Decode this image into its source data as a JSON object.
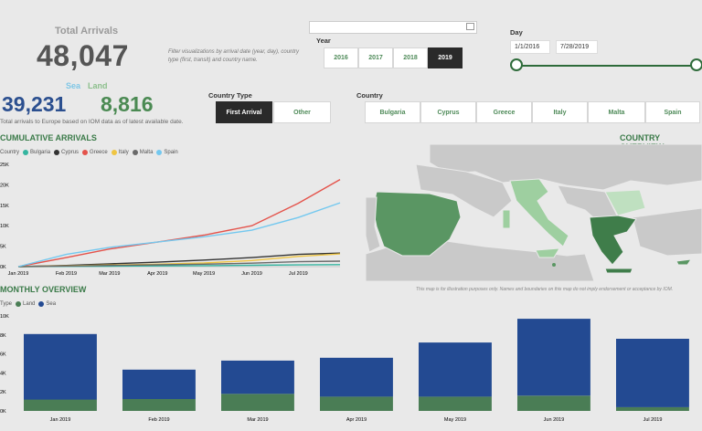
{
  "kpi": {
    "title": "Total Arrivals",
    "total": "48,047",
    "sea_label": "Sea",
    "land_label": "Land",
    "sea_value": "39,231",
    "land_value": "8,816",
    "note": "Total arrivals to Europe based on IOM data as of latest available date."
  },
  "filter_note": "Filter visualizations by arrival date (year, day), country type (first, transit) and country name.",
  "year": {
    "label": "Year",
    "options": [
      "2016",
      "2017",
      "2018",
      "2019"
    ],
    "selected": "2019"
  },
  "day": {
    "label": "Day",
    "start": "1/1/2016",
    "end": "7/28/2019"
  },
  "country_type": {
    "label": "Country Type",
    "options": [
      "First Arrival",
      "Other"
    ],
    "selected": "First Arrival"
  },
  "country": {
    "label": "Country",
    "options": [
      "Bulgaria",
      "Cyprus",
      "Greece",
      "Italy",
      "Malta",
      "Spain"
    ]
  },
  "cumulative": {
    "title": "CUMULATIVE ARRIVALS",
    "legend_title": "Country",
    "x_ticks": [
      "Jan 2019",
      "Feb 2019",
      "Mar 2019",
      "Apr 2019",
      "May 2019",
      "Jun 2019",
      "Jul 2019"
    ],
    "y_ticks": [
      "0K",
      "5K",
      "10K",
      "15K",
      "20K",
      "25K"
    ]
  },
  "country_overview": {
    "title": "COUNTRY OVERVIEW"
  },
  "map_note": "This map is for illustration purposes only. Names and boundaries on this map do not imply endorsement or acceptance by IOM.",
  "monthly": {
    "title": "MONTHLY OVERVIEW",
    "legend_title": "Type",
    "y_ticks": [
      "0K",
      "2K",
      "4K",
      "6K",
      "8K",
      "10K"
    ]
  },
  "colors": {
    "accent": "#3a7a48",
    "sea": "#234a92",
    "land": "#4a7d55",
    "selected_button": "#2a2a2a"
  },
  "chart_data": [
    {
      "type": "line",
      "title": "CUMULATIVE ARRIVALS",
      "x": [
        "2019-01-01",
        "2019-02-01",
        "2019-03-01",
        "2019-04-01",
        "2019-05-01",
        "2019-06-01",
        "2019-07-01",
        "2019-07-28"
      ],
      "ylim": [
        0,
        25000
      ],
      "legend_title": "Country",
      "legend_placement": "top-left",
      "series": [
        {
          "name": "Bulgaria",
          "color": "#35b5a0",
          "values": [
            0,
            60,
            120,
            180,
            250,
            330,
            420,
            480
          ]
        },
        {
          "name": "Cyprus",
          "color": "#333333",
          "values": [
            0,
            300,
            700,
            1100,
            1600,
            2200,
            3000,
            3300
          ]
        },
        {
          "name": "Greece",
          "color": "#e4534b",
          "values": [
            0,
            2200,
            4300,
            6000,
            7700,
            10000,
            15500,
            21300
          ]
        },
        {
          "name": "Italy",
          "color": "#efc542",
          "values": [
            0,
            200,
            400,
            600,
            900,
            1500,
            2500,
            3100
          ]
        },
        {
          "name": "Malta",
          "color": "#6a6a6a",
          "values": [
            0,
            150,
            300,
            450,
            600,
            850,
            1200,
            1350
          ]
        },
        {
          "name": "Spain",
          "color": "#73c8ef",
          "values": [
            0,
            3000,
            4700,
            6000,
            7300,
            8900,
            12000,
            15600
          ]
        }
      ]
    },
    {
      "type": "bar",
      "title": "MONTHLY OVERVIEW",
      "categories": [
        "Jan 2019",
        "Feb 2019",
        "Mar 2019",
        "Apr 2019",
        "May 2019",
        "Jun 2019",
        "Jul 2019"
      ],
      "ylim": [
        0,
        10000
      ],
      "stacked": true,
      "legend_title": "Type",
      "legend_placement": "top-left",
      "series": [
        {
          "name": "Land",
          "color": "#4a7d55",
          "values": [
            1200,
            1250,
            1800,
            1500,
            1500,
            1600,
            400
          ]
        },
        {
          "name": "Sea",
          "color": "#234a92",
          "values": [
            6900,
            3100,
            3500,
            4100,
            5700,
            8100,
            7200
          ]
        }
      ]
    }
  ]
}
